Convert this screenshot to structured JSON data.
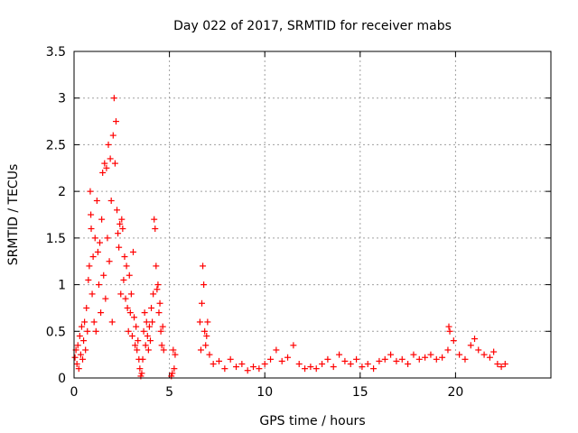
{
  "chart_data": {
    "type": "scatter",
    "title": "Day 022 of 2017, SRMTID for receiver mabs",
    "xlabel": "GPS time / hours",
    "ylabel": "SRMTID / TECUs",
    "xlim": [
      0,
      25
    ],
    "ylim": [
      0,
      3.5
    ],
    "xticks": [
      0,
      5,
      10,
      15,
      20
    ],
    "xtick_labels": [
      "0",
      "5",
      "10",
      "15",
      "20"
    ],
    "yticks": [
      0,
      0.5,
      1,
      1.5,
      2,
      2.5,
      3,
      3.5
    ],
    "ytick_labels": [
      "0",
      "0.5",
      "1",
      "1.5",
      "2",
      "2.5",
      "3",
      "3.5"
    ],
    "grid": true,
    "marker": "+",
    "marker_color": "#ff0000",
    "series": [
      {
        "name": "SRMTID",
        "points": [
          [
            0.05,
            0.22
          ],
          [
            0.1,
            0.3
          ],
          [
            0.15,
            0.15
          ],
          [
            0.2,
            0.35
          ],
          [
            0.25,
            0.1
          ],
          [
            0.3,
            0.45
          ],
          [
            0.35,
            0.25
          ],
          [
            0.4,
            0.55
          ],
          [
            0.45,
            0.2
          ],
          [
            0.5,
            0.4
          ],
          [
            0.55,
            0.6
          ],
          [
            0.6,
            0.3
          ],
          [
            0.65,
            0.75
          ],
          [
            0.7,
            0.5
          ],
          [
            0.75,
            1.05
          ],
          [
            0.8,
            1.2
          ],
          [
            0.85,
            2.0
          ],
          [
            0.88,
            1.75
          ],
          [
            0.9,
            1.6
          ],
          [
            0.95,
            0.9
          ],
          [
            1.0,
            1.3
          ],
          [
            1.05,
            0.6
          ],
          [
            1.1,
            1.5
          ],
          [
            1.15,
            0.5
          ],
          [
            1.2,
            1.9
          ],
          [
            1.25,
            1.35
          ],
          [
            1.3,
            1.0
          ],
          [
            1.35,
            1.45
          ],
          [
            1.4,
            0.7
          ],
          [
            1.45,
            1.7
          ],
          [
            1.5,
            2.2
          ],
          [
            1.55,
            1.1
          ],
          [
            1.6,
            2.3
          ],
          [
            1.65,
            0.85
          ],
          [
            1.7,
            2.25
          ],
          [
            1.75,
            1.5
          ],
          [
            1.8,
            2.5
          ],
          [
            1.85,
            1.25
          ],
          [
            1.9,
            2.35
          ],
          [
            1.95,
            1.9
          ],
          [
            2.0,
            0.6
          ],
          [
            2.05,
            2.6
          ],
          [
            2.1,
            3.0
          ],
          [
            2.15,
            2.3
          ],
          [
            2.2,
            2.75
          ],
          [
            2.25,
            1.8
          ],
          [
            2.3,
            1.55
          ],
          [
            2.35,
            1.4
          ],
          [
            2.4,
            1.65
          ],
          [
            2.45,
            0.9
          ],
          [
            2.5,
            1.7
          ],
          [
            2.55,
            1.6
          ],
          [
            2.6,
            1.05
          ],
          [
            2.65,
            1.3
          ],
          [
            2.7,
            0.85
          ],
          [
            2.75,
            1.2
          ],
          [
            2.8,
            0.75
          ],
          [
            2.85,
            0.5
          ],
          [
            2.9,
            1.1
          ],
          [
            2.95,
            0.7
          ],
          [
            3.0,
            0.9
          ],
          [
            3.05,
            0.45
          ],
          [
            3.1,
            1.35
          ],
          [
            3.15,
            0.65
          ],
          [
            3.2,
            0.35
          ],
          [
            3.25,
            0.55
          ],
          [
            3.3,
            0.3
          ],
          [
            3.35,
            0.4
          ],
          [
            3.4,
            0.2
          ],
          [
            3.45,
            0.1
          ],
          [
            3.5,
            0.02
          ],
          [
            3.55,
            0.05
          ],
          [
            3.6,
            0.2
          ],
          [
            3.65,
            0.5
          ],
          [
            3.7,
            0.7
          ],
          [
            3.75,
            0.35
          ],
          [
            3.8,
            0.6
          ],
          [
            3.85,
            0.45
          ],
          [
            3.9,
            0.3
          ],
          [
            3.95,
            0.55
          ],
          [
            4.0,
            0.4
          ],
          [
            4.05,
            0.75
          ],
          [
            4.1,
            0.6
          ],
          [
            4.15,
            0.9
          ],
          [
            4.2,
            1.7
          ],
          [
            4.25,
            1.6
          ],
          [
            4.3,
            1.2
          ],
          [
            4.35,
            0.95
          ],
          [
            4.4,
            1.0
          ],
          [
            4.45,
            0.7
          ],
          [
            4.5,
            0.8
          ],
          [
            4.55,
            0.5
          ],
          [
            4.6,
            0.35
          ],
          [
            4.65,
            0.55
          ],
          [
            4.7,
            0.3
          ],
          [
            5.1,
            0.02
          ],
          [
            5.15,
            0.05
          ],
          [
            5.2,
            0.3
          ],
          [
            5.25,
            0.1
          ],
          [
            5.3,
            0.25
          ],
          [
            6.6,
            0.6
          ],
          [
            6.65,
            0.3
          ],
          [
            6.7,
            0.8
          ],
          [
            6.75,
            1.2
          ],
          [
            6.8,
            1.0
          ],
          [
            6.85,
            0.5
          ],
          [
            6.9,
            0.35
          ],
          [
            6.95,
            0.45
          ],
          [
            7.0,
            0.6
          ],
          [
            7.1,
            0.25
          ],
          [
            7.3,
            0.15
          ],
          [
            7.6,
            0.18
          ],
          [
            7.9,
            0.1
          ],
          [
            8.2,
            0.2
          ],
          [
            8.5,
            0.12
          ],
          [
            8.8,
            0.15
          ],
          [
            9.1,
            0.08
          ],
          [
            9.4,
            0.12
          ],
          [
            9.7,
            0.1
          ],
          [
            10.0,
            0.15
          ],
          [
            10.3,
            0.2
          ],
          [
            10.6,
            0.3
          ],
          [
            10.9,
            0.18
          ],
          [
            11.2,
            0.22
          ],
          [
            11.5,
            0.35
          ],
          [
            11.8,
            0.15
          ],
          [
            12.1,
            0.1
          ],
          [
            12.4,
            0.12
          ],
          [
            12.7,
            0.1
          ],
          [
            13.0,
            0.15
          ],
          [
            13.3,
            0.2
          ],
          [
            13.6,
            0.12
          ],
          [
            13.9,
            0.25
          ],
          [
            14.2,
            0.18
          ],
          [
            14.5,
            0.15
          ],
          [
            14.8,
            0.2
          ],
          [
            15.1,
            0.12
          ],
          [
            15.4,
            0.15
          ],
          [
            15.7,
            0.1
          ],
          [
            16.0,
            0.18
          ],
          [
            16.3,
            0.2
          ],
          [
            16.6,
            0.25
          ],
          [
            16.9,
            0.18
          ],
          [
            17.2,
            0.2
          ],
          [
            17.5,
            0.15
          ],
          [
            17.8,
            0.25
          ],
          [
            18.1,
            0.2
          ],
          [
            18.4,
            0.22
          ],
          [
            18.7,
            0.25
          ],
          [
            19.0,
            0.2
          ],
          [
            19.3,
            0.22
          ],
          [
            19.6,
            0.3
          ],
          [
            19.65,
            0.55
          ],
          [
            19.7,
            0.5
          ],
          [
            19.9,
            0.4
          ],
          [
            20.2,
            0.25
          ],
          [
            20.5,
            0.2
          ],
          [
            20.8,
            0.35
          ],
          [
            21.0,
            0.42
          ],
          [
            21.2,
            0.3
          ],
          [
            21.5,
            0.25
          ],
          [
            21.8,
            0.22
          ],
          [
            22.0,
            0.28
          ],
          [
            22.2,
            0.15
          ],
          [
            22.4,
            0.12
          ],
          [
            22.6,
            0.15
          ]
        ]
      }
    ]
  }
}
